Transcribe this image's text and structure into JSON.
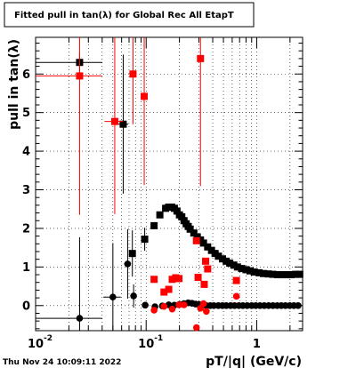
{
  "title": "Fitted pull in tan(λ) for Global Rec All EtapT",
  "timestamp": "Thu Nov 24 10:09:11 2022",
  "chart_data": {
    "type": "scatter",
    "title": "Fitted pull in tan(λ) for Global Rec All EtapT",
    "xlabel": "pT/|q| (GeV/c)",
    "ylabel": "pull in tan(λ)",
    "xscale": "log",
    "xlim": [
      0.01,
      2.6
    ],
    "ylim": [
      -0.65,
      6.95
    ],
    "xticks": [
      {
        "v": 0.01,
        "label": "10"
      },
      {
        "v": 0.1,
        "label": "10"
      },
      {
        "v": 1,
        "label": "1"
      }
    ],
    "x_exponent_labels": [
      "-2",
      "-1"
    ],
    "yticks": [
      0,
      1,
      2,
      3,
      4,
      5,
      6
    ],
    "grid": true,
    "series": [
      {
        "color": "#000000",
        "marker": "square",
        "points": [
          {
            "x": 0.025,
            "y": 6.3,
            "xerr": [
              0.015,
              0.015
            ],
            "yerr": [
              0.25,
              0.25
            ]
          },
          {
            "x": 0.062,
            "y": 4.7,
            "xerr": [
              0.007,
              0.007
            ],
            "yerr": [
              1.8,
              1.8
            ]
          },
          {
            "x": 0.075,
            "y": 1.35,
            "xerr": [
              0.005,
              0.005
            ],
            "yerr": [
              0.6,
              0.6
            ]
          },
          {
            "x": 0.097,
            "y": 1.72,
            "xerr": [
              0.006,
              0.006
            ],
            "yerr": [
              0.3,
              0.3
            ]
          },
          {
            "x": 0.118,
            "y": 2.07
          },
          {
            "x": 0.133,
            "y": 2.35
          },
          {
            "x": 0.15,
            "y": 2.52
          },
          {
            "x": 0.16,
            "y": 2.55
          },
          {
            "x": 0.17,
            "y": 2.55
          },
          {
            "x": 0.18,
            "y": 2.52
          },
          {
            "x": 0.19,
            "y": 2.45
          },
          {
            "x": 0.2,
            "y": 2.35
          },
          {
            "x": 0.21,
            "y": 2.3
          },
          {
            "x": 0.22,
            "y": 2.2
          },
          {
            "x": 0.23,
            "y": 2.12
          },
          {
            "x": 0.24,
            "y": 2.05
          },
          {
            "x": 0.25,
            "y": 1.98
          },
          {
            "x": 0.27,
            "y": 1.88
          },
          {
            "x": 0.29,
            "y": 1.78
          },
          {
            "x": 0.31,
            "y": 1.7
          },
          {
            "x": 0.33,
            "y": 1.62
          },
          {
            "x": 0.36,
            "y": 1.52
          },
          {
            "x": 0.39,
            "y": 1.43
          },
          {
            "x": 0.42,
            "y": 1.35
          },
          {
            "x": 0.45,
            "y": 1.28
          },
          {
            "x": 0.49,
            "y": 1.21
          },
          {
            "x": 0.53,
            "y": 1.15
          },
          {
            "x": 0.57,
            "y": 1.1
          },
          {
            "x": 0.62,
            "y": 1.05
          },
          {
            "x": 0.67,
            "y": 1.0
          },
          {
            "x": 0.73,
            "y": 0.96
          },
          {
            "x": 0.8,
            "y": 0.93
          },
          {
            "x": 0.87,
            "y": 0.9
          },
          {
            "x": 0.95,
            "y": 0.87
          },
          {
            "x": 1.05,
            "y": 0.85
          },
          {
            "x": 1.15,
            "y": 0.83
          },
          {
            "x": 1.27,
            "y": 0.82
          },
          {
            "x": 1.4,
            "y": 0.81
          },
          {
            "x": 1.55,
            "y": 0.8
          },
          {
            "x": 1.7,
            "y": 0.8
          },
          {
            "x": 1.87,
            "y": 0.8
          },
          {
            "x": 2.05,
            "y": 0.8
          },
          {
            "x": 2.25,
            "y": 0.81
          },
          {
            "x": 2.45,
            "y": 0.81
          }
        ]
      },
      {
        "color": "#000000",
        "marker": "circle",
        "points": [
          {
            "x": 0.025,
            "y": -0.33,
            "xerr": [
              0.015,
              0.015
            ],
            "yerr": [
              2.1,
              2.1
            ]
          },
          {
            "x": 0.05,
            "y": 0.22,
            "xerr": [
              0.009,
              0.009
            ],
            "yerr": [
              1.4,
              1.4
            ]
          },
          {
            "x": 0.068,
            "y": 1.08,
            "xerr": [
              0.005,
              0.005
            ],
            "yerr": [
              0.9,
              0.9
            ]
          },
          {
            "x": 0.077,
            "y": 0.25,
            "xerr": [
              0.004,
              0.004
            ],
            "yerr": [
              0.3,
              0.3
            ]
          },
          {
            "x": 0.098,
            "y": 0.01
          },
          {
            "x": 0.12,
            "y": -0.03
          },
          {
            "x": 0.14,
            "y": -0.01
          },
          {
            "x": 0.16,
            "y": 0.02
          },
          {
            "x": 0.18,
            "y": 0.01
          },
          {
            "x": 0.2,
            "y": 0.03
          },
          {
            "x": 0.22,
            "y": 0.05
          },
          {
            "x": 0.24,
            "y": 0.07
          },
          {
            "x": 0.26,
            "y": 0.06
          },
          {
            "x": 0.28,
            "y": 0.04
          },
          {
            "x": 0.3,
            "y": 0.03
          },
          {
            "x": 0.32,
            "y": 0.02
          },
          {
            "x": 0.35,
            "y": 0.0
          },
          {
            "x": 0.38,
            "y": 0.0
          },
          {
            "x": 0.41,
            "y": 0.0
          },
          {
            "x": 0.45,
            "y": 0.0
          },
          {
            "x": 0.49,
            "y": 0.0
          },
          {
            "x": 0.53,
            "y": 0.0
          },
          {
            "x": 0.58,
            "y": 0.0
          },
          {
            "x": 0.63,
            "y": 0.0
          },
          {
            "x": 0.69,
            "y": 0.0
          },
          {
            "x": 0.75,
            "y": 0.0
          },
          {
            "x": 0.82,
            "y": 0.0
          },
          {
            "x": 0.9,
            "y": 0.0
          },
          {
            "x": 0.98,
            "y": 0.0
          },
          {
            "x": 1.07,
            "y": 0.0
          },
          {
            "x": 1.17,
            "y": 0.0
          },
          {
            "x": 1.28,
            "y": 0.0
          },
          {
            "x": 1.4,
            "y": 0.0
          },
          {
            "x": 1.53,
            "y": 0.0
          },
          {
            "x": 1.67,
            "y": 0.0
          },
          {
            "x": 1.82,
            "y": 0.0
          },
          {
            "x": 1.99,
            "y": 0.0
          },
          {
            "x": 2.17,
            "y": 0.0
          },
          {
            "x": 2.37,
            "y": 0.0
          }
        ]
      },
      {
        "color": "#ff0000",
        "marker": "square",
        "points": [
          {
            "x": 0.025,
            "y": 5.95,
            "xerr": [
              0.015,
              0.015
            ],
            "yerr": [
              3.6,
              3.6
            ]
          },
          {
            "x": 0.052,
            "y": 4.77,
            "xerr": [
              0.01,
              0.01
            ],
            "yerr": [
              2.4,
              2.4
            ]
          },
          {
            "x": 0.076,
            "y": 6.0,
            "xerr": [
              0.004,
              0.004
            ],
            "yerr": [
              1.3,
              1.3
            ]
          },
          {
            "x": 0.096,
            "y": 5.42,
            "xerr": [
              0.006,
              0.006
            ],
            "yerr": [
              2.3,
              2.3
            ]
          },
          {
            "x": 0.118,
            "y": 0.68
          },
          {
            "x": 0.145,
            "y": 0.35
          },
          {
            "x": 0.16,
            "y": 0.42
          },
          {
            "x": 0.172,
            "y": 0.68
          },
          {
            "x": 0.185,
            "y": 0.72
          },
          {
            "x": 0.198,
            "y": 0.7
          },
          {
            "x": 0.285,
            "y": 1.68
          },
          {
            "x": 0.295,
            "y": 0.73
          },
          {
            "x": 0.31,
            "y": 6.4,
            "yerr": [
              3.3,
              3.3
            ]
          },
          {
            "x": 0.335,
            "y": 0.55
          },
          {
            "x": 0.345,
            "y": 1.15
          },
          {
            "x": 0.36,
            "y": 0.95
          },
          {
            "x": 0.655,
            "y": 0.65
          }
        ]
      },
      {
        "color": "#ff0000",
        "marker": "circle",
        "points": [
          {
            "x": 0.118,
            "y": -0.12
          },
          {
            "x": 0.145,
            "y": -0.02
          },
          {
            "x": 0.172,
            "y": -0.09
          },
          {
            "x": 0.198,
            "y": 0.02
          },
          {
            "x": 0.22,
            "y": 0.02
          },
          {
            "x": 0.285,
            "y": -0.57
          },
          {
            "x": 0.31,
            "y": -0.07
          },
          {
            "x": 0.33,
            "y": 0.05
          },
          {
            "x": 0.35,
            "y": -0.15
          },
          {
            "x": 0.655,
            "y": 0.24
          }
        ]
      }
    ]
  }
}
